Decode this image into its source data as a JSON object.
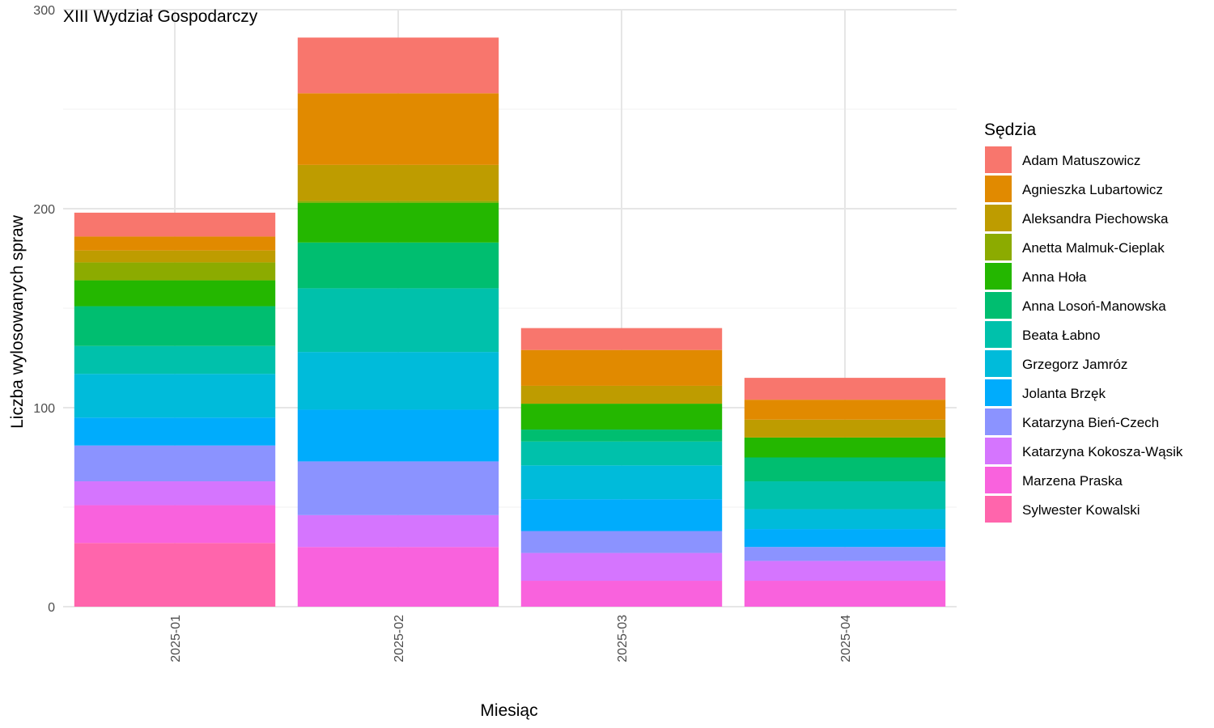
{
  "chart_data": {
    "type": "bar",
    "stacked": true,
    "title": "XIII Wydział Gospodarczy",
    "xlabel": "Miesiąc",
    "ylabel": "Liczba wylosowanych spraw",
    "ylim": [
      0,
      300
    ],
    "yticks": [
      0,
      100,
      200,
      300
    ],
    "grid": true,
    "legend_title": "Sędzia",
    "legend_position": "right",
    "categories": [
      "2025-01",
      "2025-02",
      "2025-03",
      "2025-04"
    ],
    "series": [
      {
        "name": "Adam Matuszowicz",
        "color": "#F8766D",
        "values": [
          12,
          28,
          11,
          11
        ]
      },
      {
        "name": "Agnieszka Lubartowicz",
        "color": "#E18A00",
        "values": [
          7,
          36,
          18,
          10
        ]
      },
      {
        "name": "Aleksandra Piechowska",
        "color": "#BE9C00",
        "values": [
          6,
          18,
          9,
          9
        ]
      },
      {
        "name": "Anetta Malmuk-Cieplak",
        "color": "#8CAB00",
        "values": [
          9,
          1,
          0,
          0
        ]
      },
      {
        "name": "Anna Hoła",
        "color": "#24B700",
        "values": [
          13,
          20,
          13,
          10
        ]
      },
      {
        "name": "Anna Losoń-Manowska",
        "color": "#00BE70",
        "values": [
          20,
          23,
          6,
          12
        ]
      },
      {
        "name": "Beata Łabno",
        "color": "#00C1AB",
        "values": [
          14,
          32,
          12,
          14
        ]
      },
      {
        "name": "Grzegorz Jamróz",
        "color": "#00BBDA",
        "values": [
          22,
          29,
          17,
          10
        ]
      },
      {
        "name": "Jolanta Brzęk",
        "color": "#00ACFC",
        "values": [
          14,
          26,
          16,
          9
        ]
      },
      {
        "name": "Katarzyna Bień-Czech",
        "color": "#8B93FF",
        "values": [
          18,
          27,
          11,
          7
        ]
      },
      {
        "name": "Katarzyna Kokosza-Wąsik",
        "color": "#D575FE",
        "values": [
          12,
          16,
          14,
          10
        ]
      },
      {
        "name": "Marzena Praska",
        "color": "#F962DD",
        "values": [
          19,
          30,
          13,
          13
        ]
      },
      {
        "name": "Sylwester Kowalski",
        "color": "#FF65AC",
        "values": [
          32,
          0,
          0,
          0
        ]
      }
    ]
  }
}
